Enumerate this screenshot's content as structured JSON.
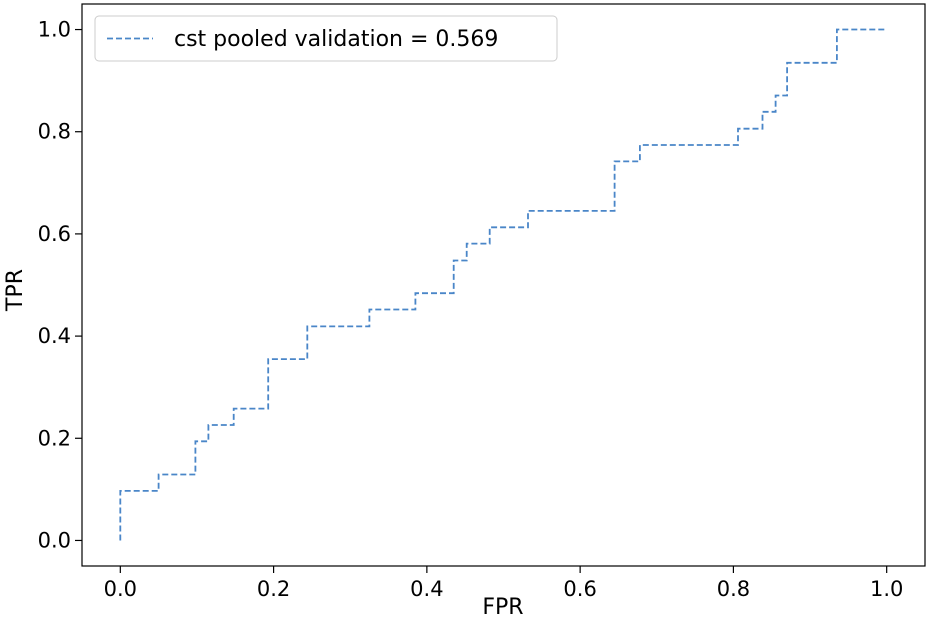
{
  "chart_data": {
    "type": "line",
    "xlabel": "FPR",
    "ylabel": "TPR",
    "xlim": [
      -0.05,
      1.05
    ],
    "ylim": [
      -0.05,
      1.05
    ],
    "x_ticks": [
      0.0,
      0.2,
      0.4,
      0.6,
      0.8,
      1.0
    ],
    "x_tick_labels": [
      "0.0",
      "0.2",
      "0.4",
      "0.6",
      "0.8",
      "1.0"
    ],
    "y_ticks": [
      0.0,
      0.2,
      0.4,
      0.6,
      0.8,
      1.0
    ],
    "y_tick_labels": [
      "0.0",
      "0.2",
      "0.4",
      "0.6",
      "0.8",
      "1.0"
    ],
    "grid": false,
    "legend_position": "upper-left",
    "series": [
      {
        "name": "cst pooled validation = 0.569",
        "color": "#4a86c8",
        "line_style": "dashed",
        "x": [
          0.0,
          0.0,
          0.05,
          0.05,
          0.098,
          0.098,
          0.115,
          0.115,
          0.148,
          0.148,
          0.193,
          0.193,
          0.244,
          0.244,
          0.325,
          0.325,
          0.385,
          0.385,
          0.435,
          0.435,
          0.452,
          0.452,
          0.482,
          0.482,
          0.532,
          0.532,
          0.645,
          0.645,
          0.678,
          0.678,
          0.806,
          0.806,
          0.838,
          0.838,
          0.855,
          0.855,
          0.87,
          0.87,
          0.935,
          0.935,
          1.0
        ],
        "y": [
          0.0,
          0.097,
          0.097,
          0.129,
          0.129,
          0.194,
          0.194,
          0.226,
          0.226,
          0.258,
          0.258,
          0.355,
          0.355,
          0.419,
          0.419,
          0.452,
          0.452,
          0.484,
          0.484,
          0.548,
          0.548,
          0.581,
          0.581,
          0.613,
          0.613,
          0.645,
          0.645,
          0.742,
          0.742,
          0.774,
          0.774,
          0.806,
          0.806,
          0.839,
          0.839,
          0.871,
          0.871,
          0.935,
          0.935,
          1.0,
          1.0
        ]
      }
    ]
  }
}
